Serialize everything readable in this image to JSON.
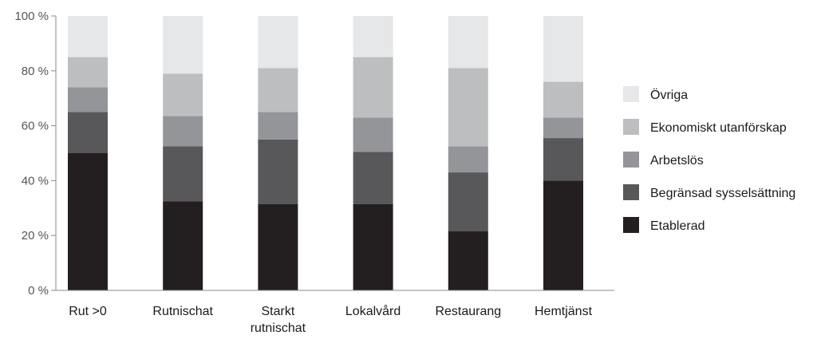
{
  "chart_data": {
    "type": "bar",
    "stacked": true,
    "categories": [
      [
        "Rut >0"
      ],
      [
        "Rutnischat"
      ],
      [
        "Starkt",
        "rutnischat"
      ],
      [
        "Lokalvård"
      ],
      [
        "Restaurang"
      ],
      [
        "Hemtjänst"
      ]
    ],
    "series": [
      {
        "name": "Etablerad",
        "color": "#231f20",
        "values": [
          50,
          32.5,
          31.5,
          31.5,
          21.5,
          40
        ]
      },
      {
        "name": "Begränsad sysselsättning",
        "color": "#58585a",
        "values": [
          15,
          20,
          23.5,
          19,
          21.5,
          15.5
        ]
      },
      {
        "name": "Arbetslös",
        "color": "#939598",
        "values": [
          9,
          11,
          10,
          12.5,
          9.5,
          7.5
        ]
      },
      {
        "name": "Ekonomiskt utanförskap",
        "color": "#bcbec0",
        "values": [
          11,
          15.5,
          16,
          22,
          28.5,
          13
        ]
      },
      {
        "name": "Övriga",
        "color": "#e6e7e8",
        "values": [
          15,
          21,
          19,
          15,
          19,
          24
        ]
      }
    ],
    "yticks": [
      "0 %",
      "20 %",
      "40 %",
      "60 %",
      "80 %",
      "100 %"
    ],
    "ylim": [
      0,
      100
    ],
    "legend_position": "right",
    "legend_order": [
      4,
      3,
      2,
      1,
      0
    ],
    "grid": false
  }
}
